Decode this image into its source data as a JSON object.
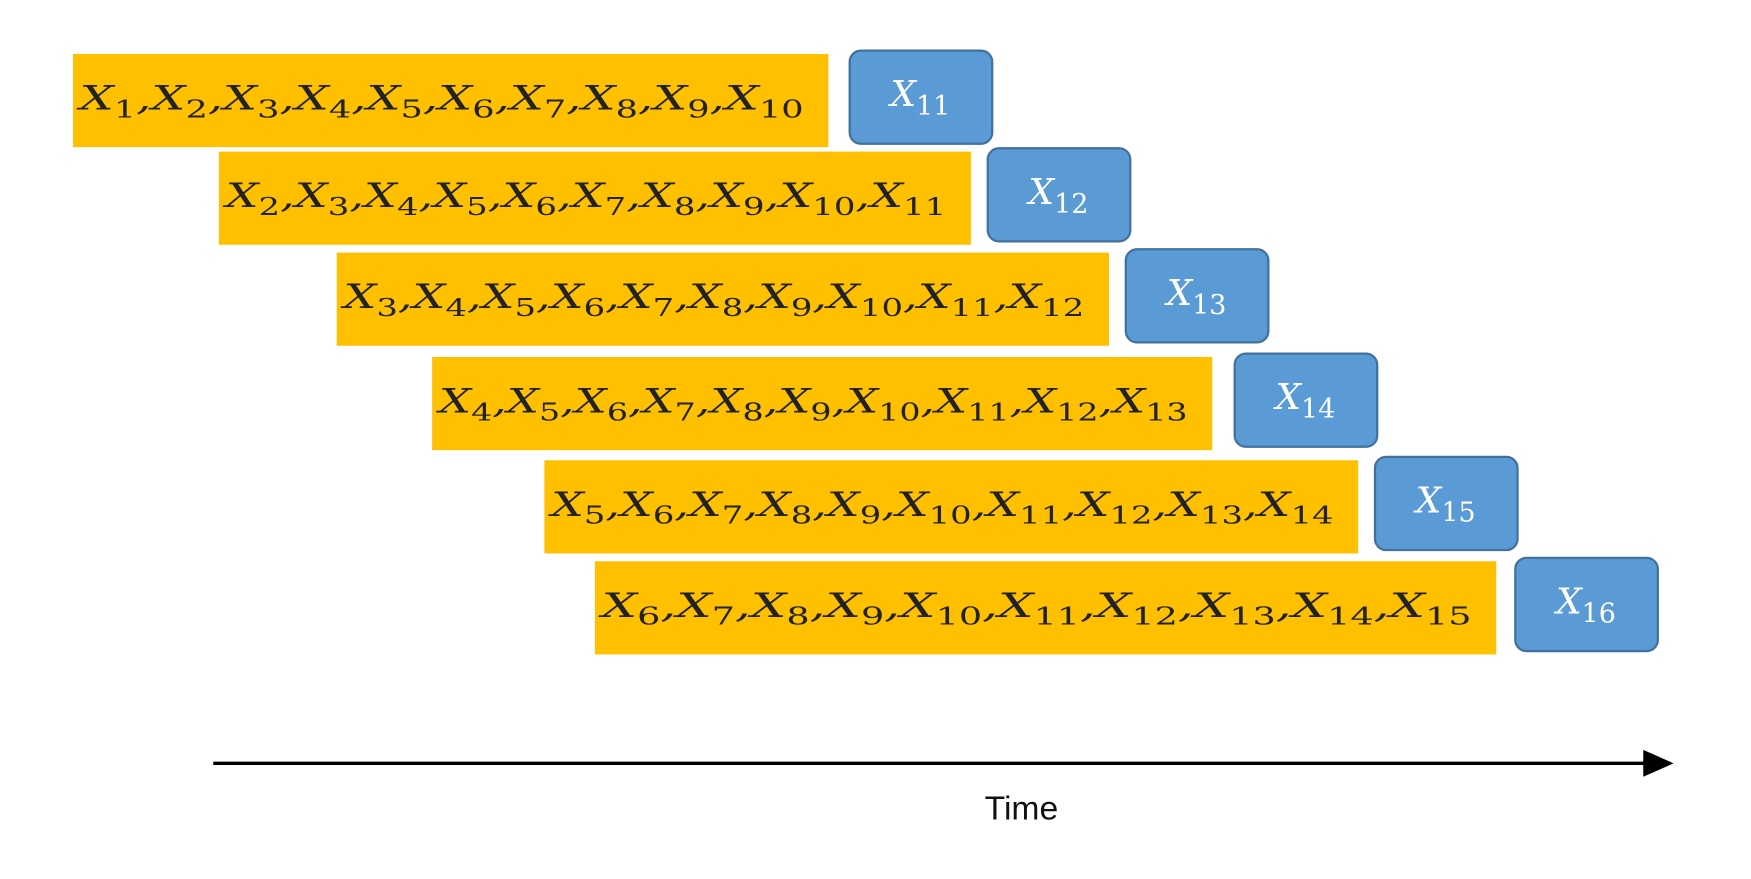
{
  "symbol": "X",
  "separator": ",",
  "rows": [
    {
      "inputs": [
        "1",
        "2",
        "3",
        "4",
        "5",
        "6",
        "7",
        "8",
        "9",
        "10"
      ],
      "target": "11"
    },
    {
      "inputs": [
        "2",
        "3",
        "4",
        "5",
        "6",
        "7",
        "8",
        "9",
        "10",
        "11"
      ],
      "target": "12"
    },
    {
      "inputs": [
        "3",
        "4",
        "5",
        "6",
        "7",
        "8",
        "9",
        "10",
        "11",
        "12"
      ],
      "target": "13"
    },
    {
      "inputs": [
        "4",
        "5",
        "6",
        "7",
        "8",
        "9",
        "10",
        "11",
        "12",
        "13"
      ],
      "target": "14"
    },
    {
      "inputs": [
        "5",
        "6",
        "7",
        "8",
        "9",
        "10",
        "11",
        "12",
        "13",
        "14"
      ],
      "target": "15"
    },
    {
      "inputs": [
        "6",
        "7",
        "8",
        "9",
        "10",
        "11",
        "12",
        "13",
        "14",
        "15"
      ],
      "target": "16"
    }
  ],
  "axis_label": "Time"
}
